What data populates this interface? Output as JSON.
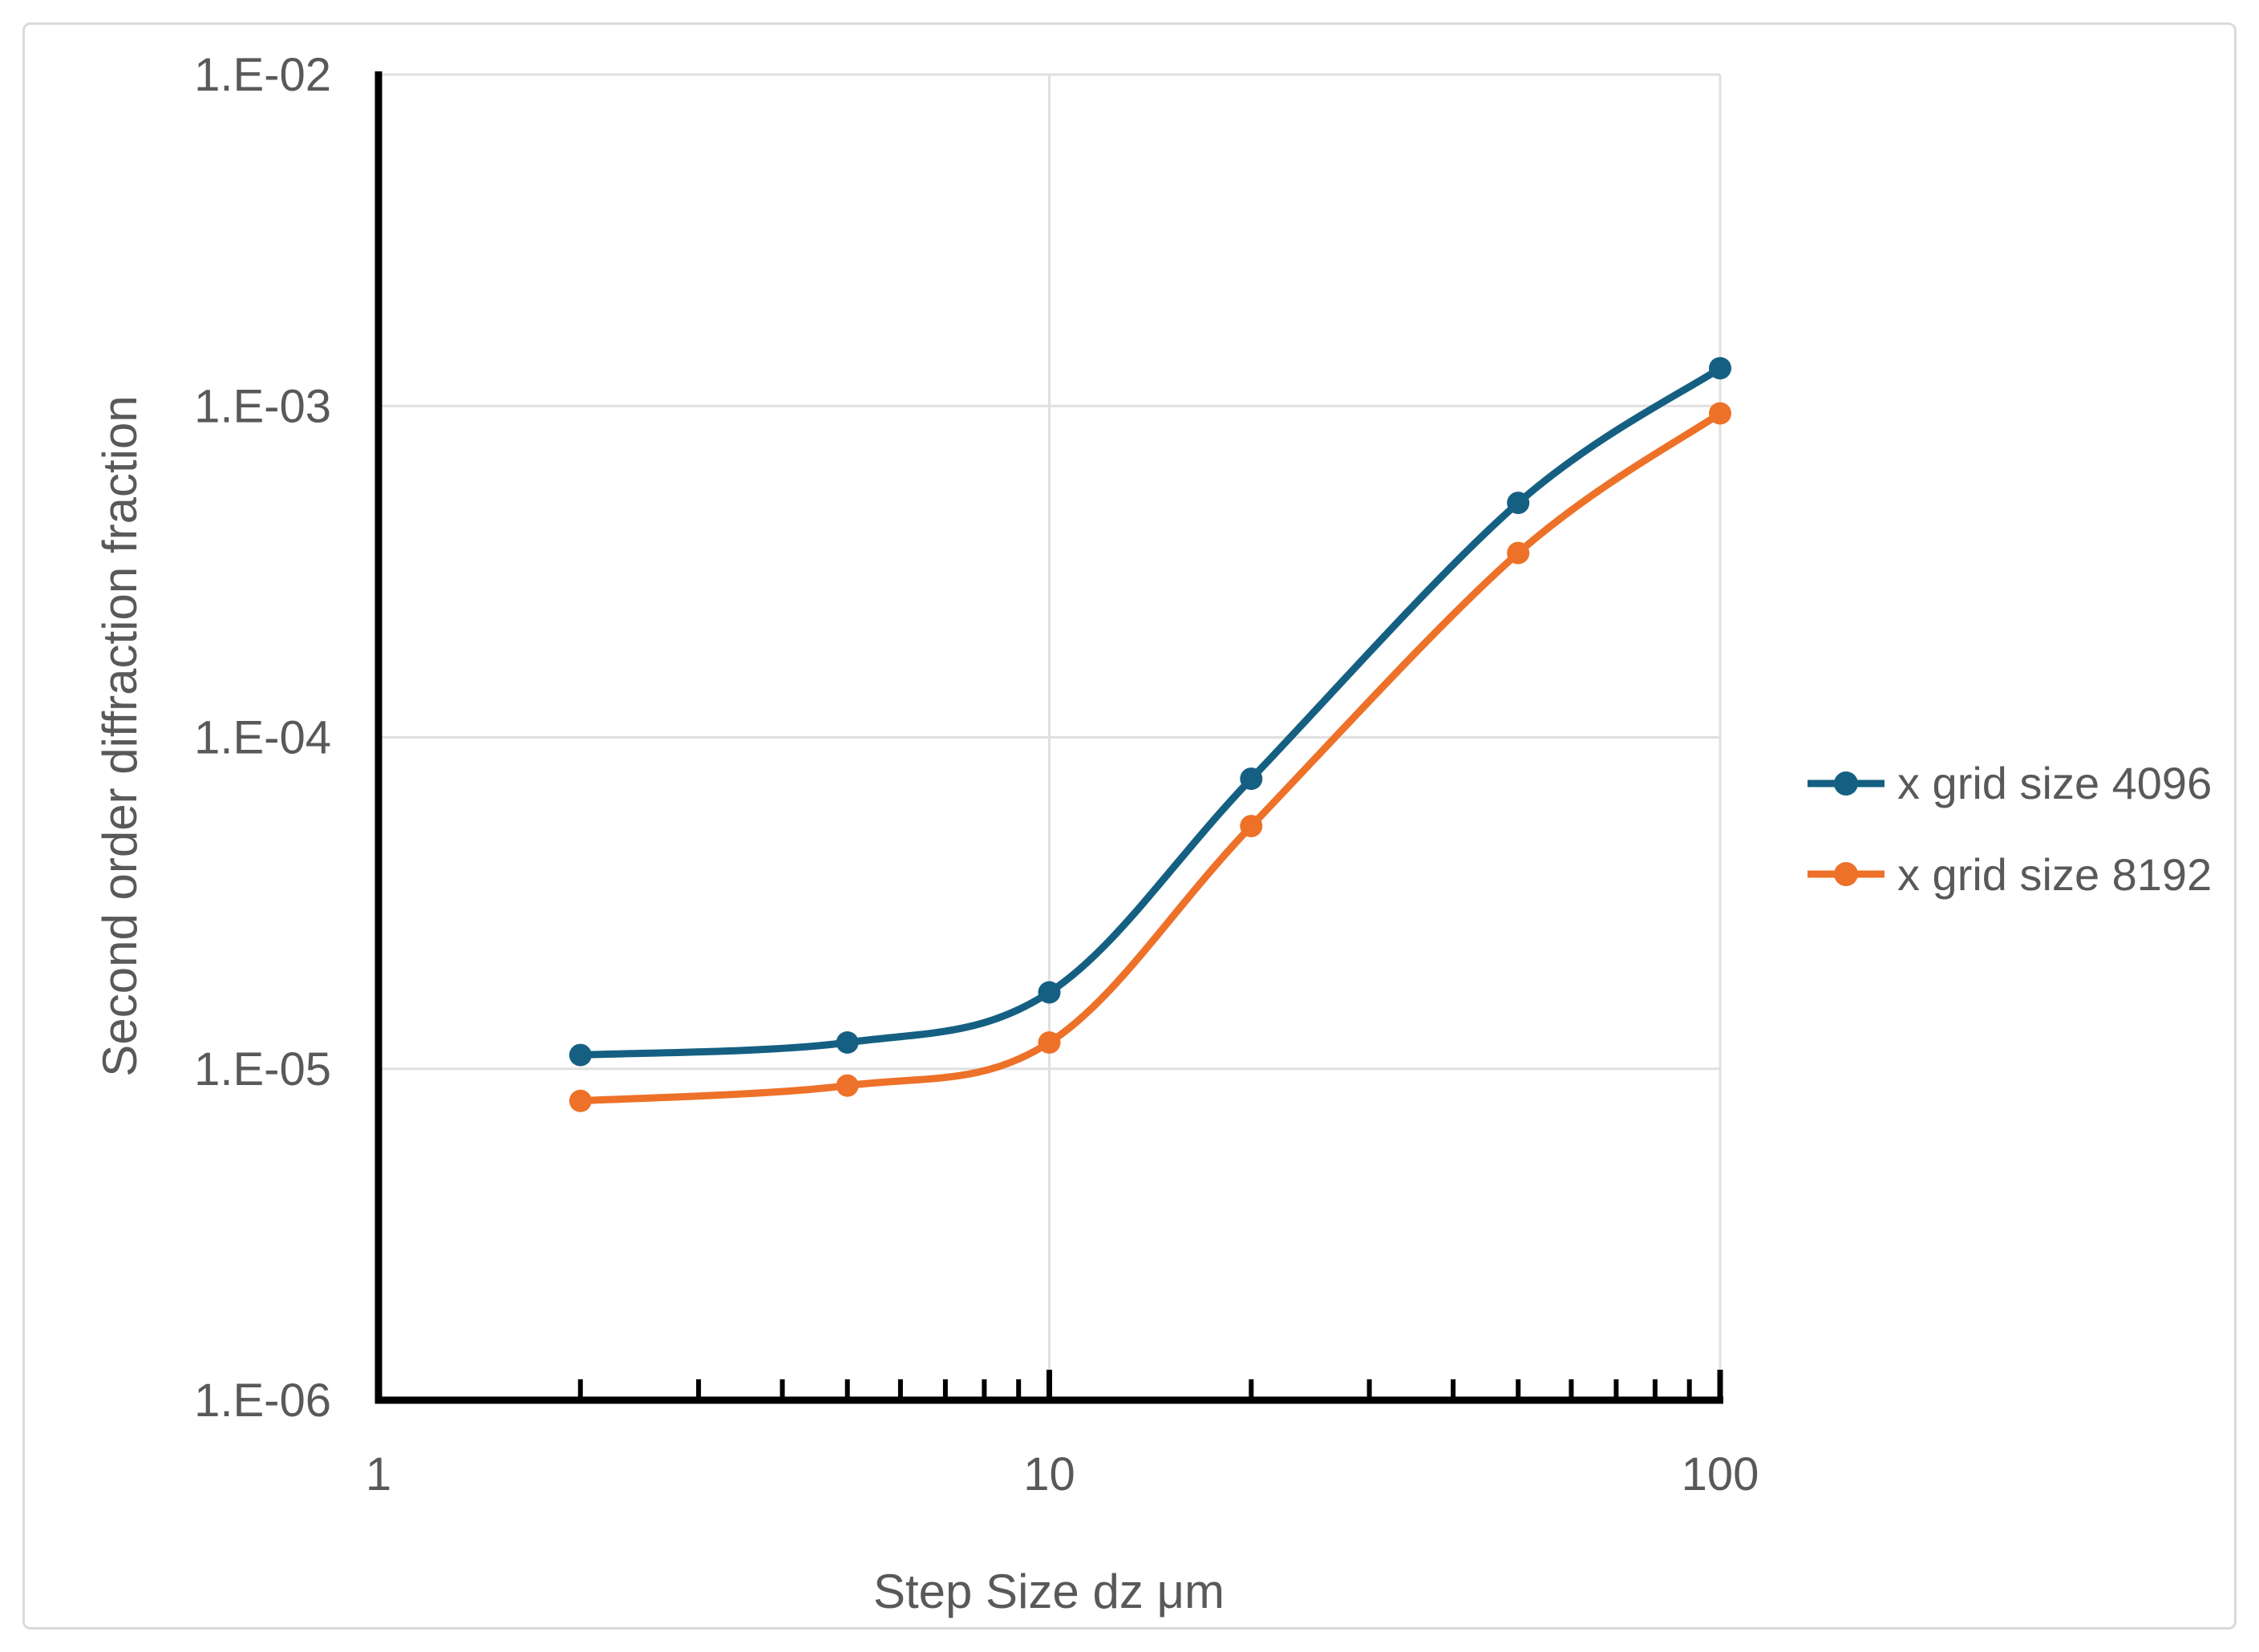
{
  "figure": {
    "background": "#ffffff",
    "border_color": "#DADADA",
    "text_color": "#595959",
    "axis_line_color": "#000000",
    "gridline_color": "#E0E0E0"
  },
  "chart_data": {
    "type": "line",
    "title": "",
    "xlabel": "Step Size dz μm",
    "ylabel": "Second order diffraction fraction",
    "legend_position": "right",
    "grid": true,
    "x_axis": {
      "scale": "log",
      "min": 1,
      "max": 100,
      "tick_values": [
        1,
        10,
        100
      ],
      "tick_labels": [
        "1",
        "10",
        "100"
      ],
      "gridline_values": [
        10,
        100
      ]
    },
    "y_axis": {
      "scale": "log",
      "min": 1e-06,
      "max": 0.01,
      "tick_values": [
        0.01,
        0.001,
        0.0001,
        1e-05,
        1e-06
      ],
      "tick_labels": [
        "1.E-02",
        "1.E-03",
        "1.E-04",
        "1.E-05",
        "1.E-06"
      ],
      "gridline_values": [
        0.01,
        0.001,
        0.0001,
        1e-05
      ]
    },
    "series": [
      {
        "name": "x grid size 4096",
        "color": "#156082",
        "x": [
          2,
          5,
          10,
          20,
          50,
          100
        ],
        "y": [
          1.1e-05,
          1.2e-05,
          1.7e-05,
          7.5e-05,
          0.00051,
          0.0013
        ]
      },
      {
        "name": "x grid size 8192",
        "color": "#ED7128",
        "x": [
          2,
          5,
          10,
          20,
          50,
          100
        ],
        "y": [
          8e-06,
          8.9e-06,
          1.2e-05,
          5.4e-05,
          0.00036,
          0.00095
        ]
      }
    ]
  }
}
